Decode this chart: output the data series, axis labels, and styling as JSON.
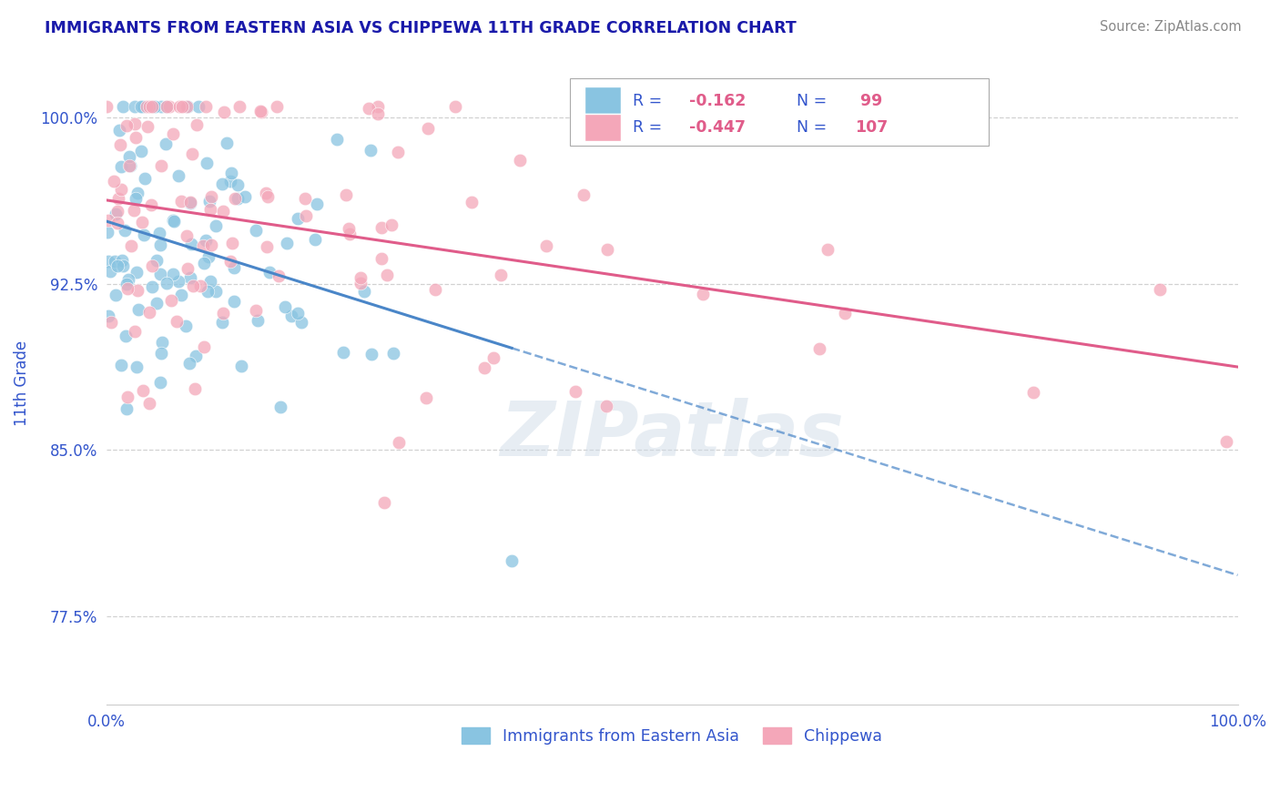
{
  "title": "IMMIGRANTS FROM EASTERN ASIA VS CHIPPEWA 11TH GRADE CORRELATION CHART",
  "source_text": "Source: ZipAtlas.com",
  "ylabel": "11th Grade",
  "xlim": [
    0.0,
    1.0
  ],
  "ylim": [
    0.735,
    1.025
  ],
  "yticks": [
    0.775,
    0.85,
    0.925,
    1.0
  ],
  "ytick_labels": [
    "77.5%",
    "85.0%",
    "92.5%",
    "100.0%"
  ],
  "blue_R": -0.162,
  "blue_N": 99,
  "pink_R": -0.447,
  "pink_N": 107,
  "blue_color": "#89c4e1",
  "pink_color": "#f4a7b9",
  "blue_line_color": "#4a86c8",
  "pink_line_color": "#e05c8a",
  "legend_label_blue": "Immigrants from Eastern Asia",
  "legend_label_pink": "Chippewa",
  "watermark": "ZIPatlas",
  "background_color": "#ffffff",
  "title_color": "#1a1aaa",
  "axis_label_color": "#3355cc",
  "tick_label_color": "#3355cc"
}
